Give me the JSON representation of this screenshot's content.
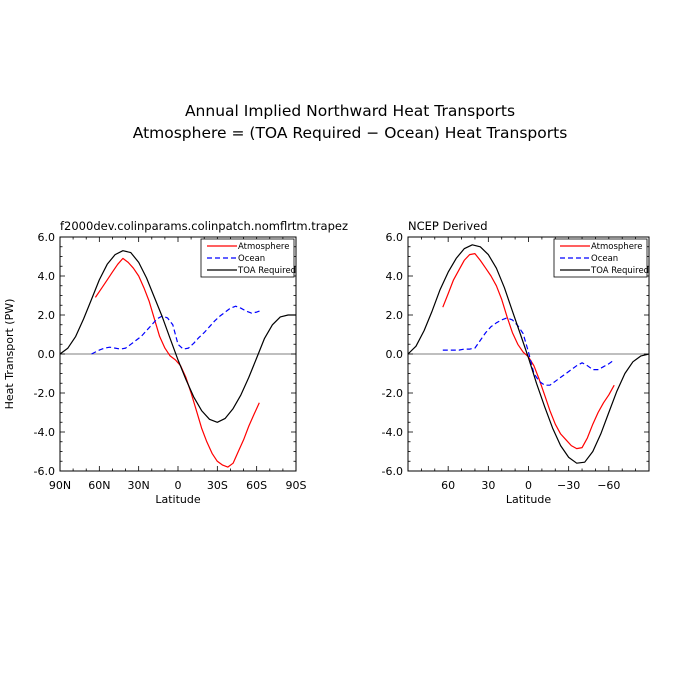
{
  "figure": {
    "title_line1": "Annual Implied Northward Heat Transports",
    "title_line2": "Atmosphere = (TOA Required − Ocean) Heat Transports"
  },
  "chart_data": [
    {
      "type": "line",
      "title": "f2000dev.colinparams.colinpatch.nomflrtm.trapez",
      "xlabel": "Latitude",
      "ylabel": "Heat Transport (PW)",
      "xlim": [
        90,
        -90
      ],
      "ylim": [
        -6,
        6
      ],
      "grid": false,
      "legend_position": "top-right",
      "xticks": [
        90,
        60,
        30,
        0,
        -30,
        -60,
        -90
      ],
      "xtick_labels": [
        "90N",
        "60N",
        "30N",
        "0",
        "30S",
        "60S",
        "90S"
      ],
      "yticks": [
        6,
        4,
        2,
        0,
        -2,
        -4,
        -6
      ],
      "ytick_labels": [
        "6.0",
        "4.0",
        "2.0",
        "0.0",
        "-2.0",
        "-4.0",
        "-6.0"
      ],
      "series": [
        {
          "name": "Atmosphere",
          "color": "#ff0000",
          "dash": "solid",
          "x": [
            63,
            58,
            54,
            50,
            46,
            42,
            38,
            34,
            30,
            26,
            22,
            18,
            14,
            10,
            6,
            2,
            -2,
            -6,
            -10,
            -14,
            -18,
            -22,
            -26,
            -30,
            -34,
            -38,
            -42,
            -46,
            -50,
            -54,
            -58,
            -62
          ],
          "y": [
            2.9,
            3.4,
            3.8,
            4.2,
            4.6,
            4.9,
            4.7,
            4.4,
            4.0,
            3.4,
            2.7,
            1.8,
            0.9,
            0.3,
            -0.1,
            -0.3,
            -0.6,
            -1.2,
            -2.0,
            -2.9,
            -3.8,
            -4.5,
            -5.1,
            -5.5,
            -5.7,
            -5.8,
            -5.6,
            -5.0,
            -4.4,
            -3.7,
            -3.1,
            -2.5
          ]
        },
        {
          "name": "Ocean",
          "color": "#0000ff",
          "dash": "dashed",
          "x": [
            66,
            60,
            56,
            52,
            48,
            44,
            40,
            36,
            32,
            28,
            24,
            20,
            16,
            12,
            8,
            4,
            2,
            0,
            -4,
            -8,
            -12,
            -16,
            -20,
            -24,
            -28,
            -32,
            -36,
            -40,
            -44,
            -48,
            -52,
            -56,
            -60,
            -64
          ],
          "y": [
            0.0,
            0.2,
            0.3,
            0.35,
            0.3,
            0.25,
            0.3,
            0.5,
            0.7,
            0.9,
            1.2,
            1.5,
            1.8,
            1.95,
            1.85,
            1.5,
            1.0,
            0.5,
            0.25,
            0.3,
            0.55,
            0.85,
            1.1,
            1.4,
            1.7,
            1.95,
            2.15,
            2.35,
            2.45,
            2.35,
            2.2,
            2.1,
            2.15,
            2.25
          ]
        },
        {
          "name": "TOA Required",
          "color": "#000000",
          "dash": "solid",
          "x": [
            90,
            84,
            78,
            72,
            66,
            60,
            54,
            48,
            42,
            36,
            30,
            24,
            18,
            12,
            6,
            0,
            -6,
            -12,
            -18,
            -24,
            -30,
            -36,
            -42,
            -48,
            -54,
            -60,
            -66,
            -72,
            -78,
            -84,
            -90
          ],
          "y": [
            0.0,
            0.3,
            0.9,
            1.8,
            2.8,
            3.8,
            4.6,
            5.1,
            5.3,
            5.2,
            4.7,
            3.9,
            2.9,
            1.9,
            0.8,
            -0.3,
            -1.3,
            -2.2,
            -2.9,
            -3.35,
            -3.5,
            -3.3,
            -2.8,
            -2.1,
            -1.2,
            -0.2,
            0.8,
            1.5,
            1.9,
            2.0,
            2.0
          ]
        }
      ]
    },
    {
      "type": "line",
      "title": "NCEP Derived",
      "xlabel": "Latitude",
      "ylabel": "",
      "xlim": [
        90,
        -90
      ],
      "ylim": [
        -6,
        6
      ],
      "grid": false,
      "legend_position": "top-right",
      "xticks": [
        60,
        30,
        0,
        -30,
        -60
      ],
      "xtick_labels": [
        "60",
        "30",
        "0",
        "−30",
        "−60"
      ],
      "yticks": [
        6,
        4,
        2,
        0,
        -2,
        -4,
        -6
      ],
      "ytick_labels": [
        "6.0",
        "4.0",
        "2.0",
        "0.0",
        "-2.0",
        "-4.0",
        "-6.0"
      ],
      "series": [
        {
          "name": "Atmosphere",
          "color": "#ff0000",
          "dash": "solid",
          "x": [
            64,
            60,
            56,
            52,
            48,
            44,
            40,
            36,
            32,
            28,
            24,
            20,
            16,
            12,
            8,
            4,
            0,
            -4,
            -8,
            -12,
            -16,
            -20,
            -24,
            -28,
            -32,
            -36,
            -40,
            -44,
            -48,
            -52,
            -56,
            -60,
            -64
          ],
          "y": [
            2.4,
            3.1,
            3.8,
            4.3,
            4.8,
            5.1,
            5.15,
            4.8,
            4.4,
            4.0,
            3.5,
            2.8,
            1.9,
            1.1,
            0.5,
            0.1,
            -0.15,
            -0.6,
            -1.3,
            -2.1,
            -2.9,
            -3.6,
            -4.1,
            -4.4,
            -4.7,
            -4.85,
            -4.8,
            -4.3,
            -3.6,
            -3.0,
            -2.5,
            -2.1,
            -1.6
          ]
        },
        {
          "name": "Ocean",
          "color": "#0000ff",
          "dash": "dashed",
          "x": [
            64,
            60,
            56,
            52,
            48,
            44,
            40,
            36,
            32,
            28,
            24,
            20,
            16,
            12,
            8,
            4,
            0,
            -4,
            -8,
            -12,
            -16,
            -20,
            -24,
            -28,
            -32,
            -36,
            -40,
            -44,
            -48,
            -52,
            -56,
            -60,
            -64
          ],
          "y": [
            0.2,
            0.2,
            0.2,
            0.2,
            0.25,
            0.25,
            0.3,
            0.7,
            1.1,
            1.4,
            1.6,
            1.75,
            1.85,
            1.75,
            1.45,
            1.05,
            0.1,
            -1.0,
            -1.4,
            -1.6,
            -1.6,
            -1.4,
            -1.2,
            -1.0,
            -0.8,
            -0.6,
            -0.45,
            -0.6,
            -0.8,
            -0.8,
            -0.65,
            -0.5,
            -0.3
          ]
        },
        {
          "name": "TOA Required",
          "color": "#000000",
          "dash": "solid",
          "x": [
            90,
            84,
            78,
            72,
            66,
            60,
            54,
            48,
            42,
            36,
            30,
            24,
            18,
            12,
            6,
            0,
            -6,
            -12,
            -18,
            -24,
            -30,
            -36,
            -42,
            -48,
            -54,
            -60,
            -66,
            -72,
            -78,
            -84,
            -90
          ],
          "y": [
            0.0,
            0.4,
            1.2,
            2.2,
            3.3,
            4.2,
            4.9,
            5.4,
            5.6,
            5.5,
            5.1,
            4.4,
            3.4,
            2.2,
            1.0,
            -0.2,
            -1.5,
            -2.7,
            -3.8,
            -4.7,
            -5.3,
            -5.6,
            -5.55,
            -5.0,
            -4.1,
            -3.0,
            -1.9,
            -1.0,
            -0.4,
            -0.1,
            0.0
          ]
        }
      ]
    }
  ]
}
